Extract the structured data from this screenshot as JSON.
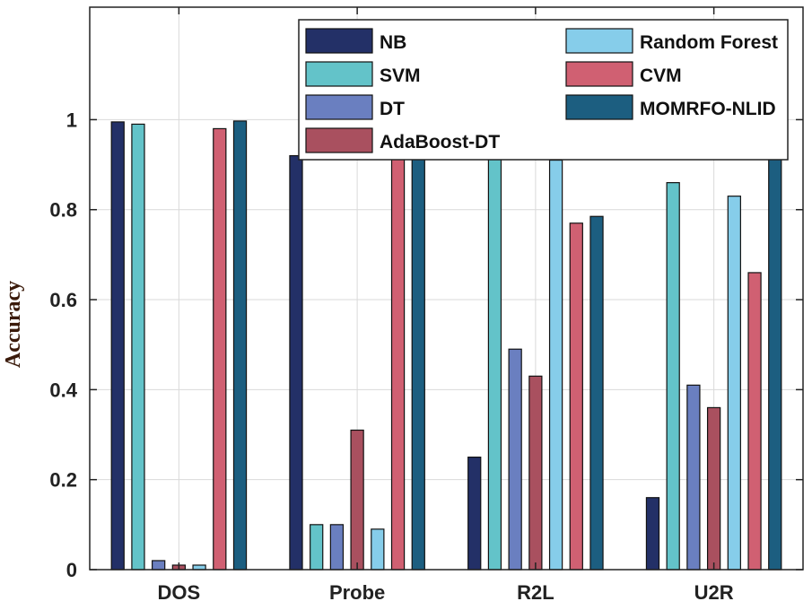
{
  "chart_data": {
    "type": "bar",
    "title": "",
    "xlabel": "",
    "ylabel": "Accuracy",
    "ylim": [
      0,
      1.25
    ],
    "yticks": [
      0,
      0.2,
      0.4,
      0.6,
      0.8,
      1
    ],
    "ytick_labels": [
      "0",
      "0.2",
      "0.4",
      "0.6",
      "0.8",
      "1"
    ],
    "grid": true,
    "legend_position": "top-right",
    "categories": [
      "DOS",
      "Probe",
      "R2L",
      "U2R"
    ],
    "series": [
      {
        "name": "NB",
        "color": "#233067",
        "values": [
          0.995,
          0.92,
          0.25,
          0.16
        ]
      },
      {
        "name": "SVM",
        "color": "#63C3C9",
        "values": [
          0.99,
          0.1,
          0.93,
          0.86
        ]
      },
      {
        "name": "DT",
        "color": "#6A7FC0",
        "values": [
          0.02,
          0.1,
          0.49,
          0.41
        ]
      },
      {
        "name": "AdaBoost-DT",
        "color": "#A9505F",
        "values": [
          0.01,
          0.31,
          0.43,
          0.36
        ]
      },
      {
        "name": "Random Forest",
        "color": "#86CDEA",
        "values": [
          0.01,
          0.09,
          0.91,
          0.83
        ]
      },
      {
        "name": "CVM",
        "color": "#D06072",
        "values": [
          0.98,
          0.95,
          0.77,
          0.66
        ]
      },
      {
        "name": "MOMRFO-NLID",
        "color": "#1C5E80",
        "values": [
          0.997,
          0.965,
          0.785,
          0.94
        ]
      }
    ]
  }
}
